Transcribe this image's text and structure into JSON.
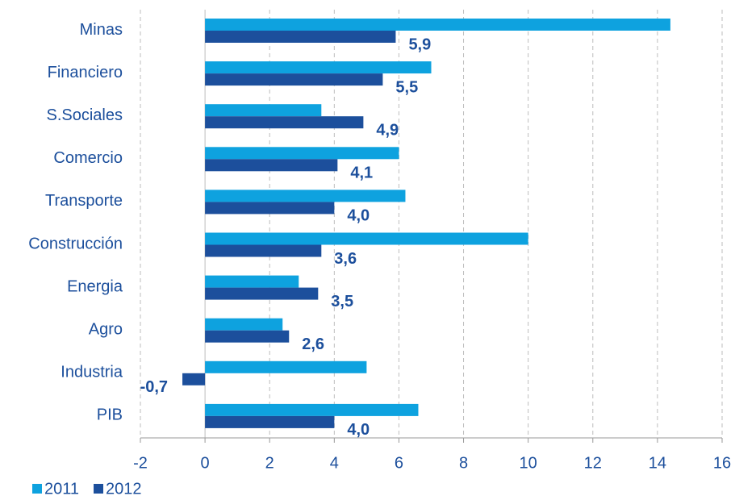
{
  "chart_data": {
    "type": "hbar",
    "categories": [
      "Minas",
      "Financiero",
      "S.Sociales",
      "Comercio",
      "Transporte",
      "Construcción",
      "Energia",
      "Agro",
      "Industria",
      "PIB"
    ],
    "series": [
      {
        "name": "2011",
        "color": "#0ea2df",
        "values": [
          14.4,
          7.0,
          3.6,
          6.0,
          6.2,
          10.0,
          2.9,
          2.4,
          5.0,
          6.6
        ]
      },
      {
        "name": "2012",
        "color": "#1c4f9c",
        "values": [
          5.9,
          5.5,
          4.9,
          4.1,
          4.0,
          3.6,
          3.5,
          2.6,
          -0.7,
          4.0
        ],
        "value_labels": [
          "5,9",
          "5,5",
          "4,9",
          "4,1",
          "4,0",
          "3,6",
          "3,5",
          "2,6",
          "-0,7",
          "4,0"
        ]
      }
    ],
    "xlim": [
      -2,
      16
    ],
    "xticks": [
      -2,
      0,
      2,
      4,
      6,
      8,
      10,
      12,
      14,
      16
    ],
    "grid": true,
    "legend": "bottom-left"
  }
}
